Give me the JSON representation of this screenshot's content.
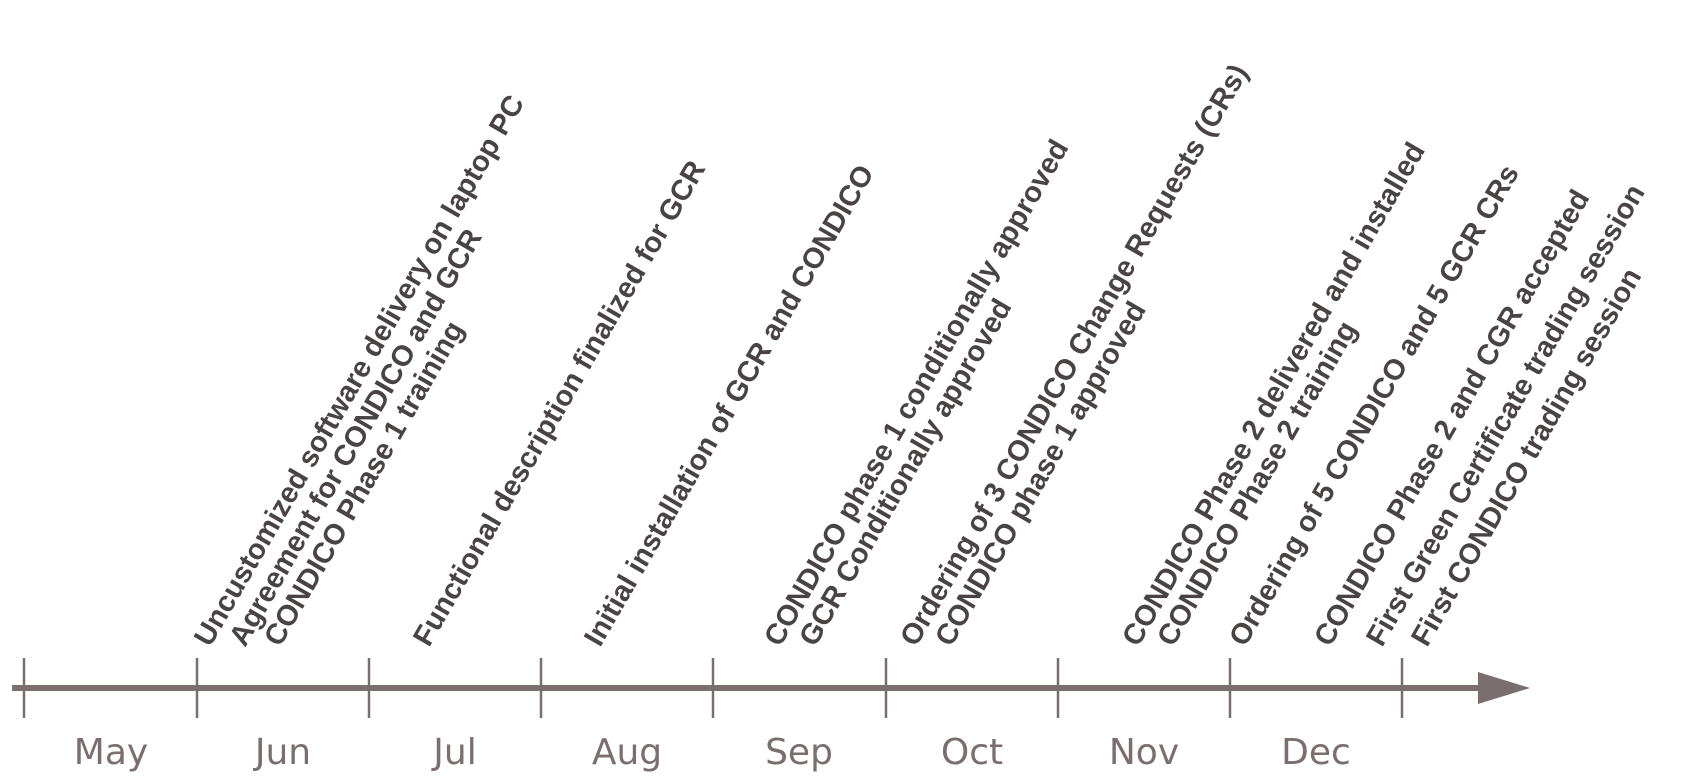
{
  "timeline": {
    "months": [
      "May",
      "Jun",
      "Jul",
      "Aug",
      "Sep",
      "Oct",
      "Nov",
      "Dec"
    ],
    "events": [
      "Uncustomized software delivery on laptop PC",
      "Agreement for CONDICO and GCR",
      "CONDICO Phase 1 training",
      "Functional description finalized for GCR",
      "Initial installation of GCR and CONDICO",
      "CONDICO phase 1 conditionally approved",
      "GCR Conditionally approved",
      "Ordering of 3 CONDICO Change Requests (CRs)",
      "CONDICO phase 1 approved",
      "CONDICO Phase 2 delivered and installed",
      "CONDICO Phase 2 training",
      "Ordering of 5 CONDICO and 5 GCR CRs",
      "CONDICO Phase 2 and CGR accepted",
      "First Green Certificate trading session",
      "First CONDICO trading session"
    ],
    "colors": {
      "axis": "#7a6e6e",
      "event_text": "#4a4344",
      "month_text": "#7a6e6e",
      "background": "#ffffff"
    }
  }
}
